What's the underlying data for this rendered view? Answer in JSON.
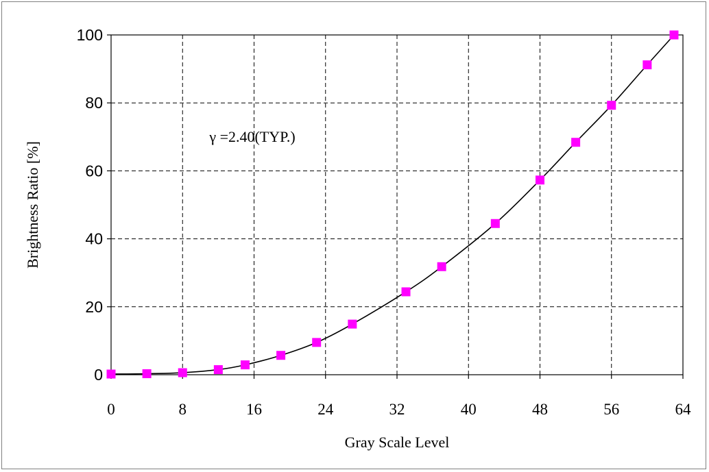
{
  "chart_data": {
    "type": "line",
    "xlabel": "Gray Scale Level",
    "ylabel": "Brightness Ratio [%]",
    "annotation": "γ =2.40(TYP.)",
    "xlim": [
      0,
      64
    ],
    "ylim": [
      0,
      100
    ],
    "x_ticks": [
      "0",
      "8",
      "16",
      "24",
      "32",
      "40",
      "48",
      "56",
      "64"
    ],
    "y_ticks": [
      "0",
      "20",
      "40",
      "60",
      "80",
      "100"
    ],
    "grid": true,
    "gridline_style": "dashed",
    "series": [
      {
        "marker": "square",
        "marker_color": "#ff00ff",
        "line_color": "#000000",
        "points": [
          {
            "x": 0,
            "y": 0.2
          },
          {
            "x": 4,
            "y": 0.3
          },
          {
            "x": 8,
            "y": 0.6
          },
          {
            "x": 12,
            "y": 1.5
          },
          {
            "x": 15,
            "y": 2.9
          },
          {
            "x": 19,
            "y": 5.7
          },
          {
            "x": 23,
            "y": 9.5
          },
          {
            "x": 27,
            "y": 14.9
          },
          {
            "x": 33,
            "y": 24.4
          },
          {
            "x": 37,
            "y": 31.8
          },
          {
            "x": 43,
            "y": 44.5
          },
          {
            "x": 48,
            "y": 57.3
          },
          {
            "x": 52,
            "y": 68.4
          },
          {
            "x": 56,
            "y": 79.3
          },
          {
            "x": 60,
            "y": 91.2
          },
          {
            "x": 63,
            "y": 100
          }
        ]
      }
    ]
  }
}
